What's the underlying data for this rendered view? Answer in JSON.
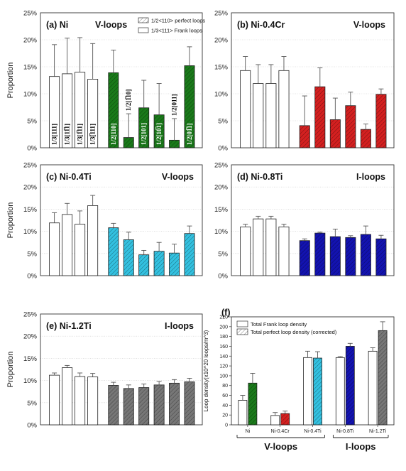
{
  "chart_data": [
    {
      "type": "bar",
      "title": "(a) Ni",
      "loop_type": "V-loops",
      "ylabel": "Proportion",
      "ylim": [
        0,
        25
      ],
      "yticks": [
        "0%",
        "5%",
        "10%",
        "15%",
        "20%",
        "25%"
      ],
      "legend": [
        "1/2<110> perfect loops",
        "1/3<111> Frank loops"
      ],
      "series": [
        {
          "name": "1/3<111> Frank loops",
          "color": "#ffffff",
          "hatch": false,
          "values": [
            13.2,
            13.7,
            14.0,
            12.7
          ],
          "errors": [
            5.9,
            6.6,
            6.4,
            6.6
          ],
          "labels": [
            "1/3[111]",
            "1/3[11̅1]",
            "1/3[1̅11]",
            "1/3[̅111]"
          ]
        },
        {
          "name": "1/2<110> perfect loops",
          "color": "#1a7a1a",
          "hatch": true,
          "values": [
            13.9,
            1.9,
            7.4,
            6.1,
            1.4,
            15.2
          ],
          "errors": [
            4.2,
            4.4,
            5.1,
            5.8,
            4.0,
            3.5
          ],
          "labels": [
            "1/2[110]",
            "1/2[1̅10]",
            "1/2[101]",
            "1/2[10̅1]",
            "1/2[011]",
            "1/2[01̅1]"
          ]
        }
      ]
    },
    {
      "type": "bar",
      "title": "(b) Ni-0.4Cr",
      "loop_type": "V-loops",
      "ylabel": "",
      "ylim": [
        0,
        25
      ],
      "yticks": [
        "0%",
        "5%",
        "10%",
        "15%",
        "20%",
        "25%"
      ],
      "series": [
        {
          "color": "#ffffff",
          "hatch": false,
          "values": [
            14.3,
            11.9,
            11.9,
            14.3
          ],
          "errors": [
            2.6,
            3.5,
            3.5,
            2.6
          ]
        },
        {
          "color": "#d42020",
          "hatch": true,
          "values": [
            4.1,
            11.3,
            5.2,
            7.8,
            3.4,
            9.9
          ],
          "errors": [
            5.5,
            3.5,
            4.0,
            2.5,
            1.0,
            1.0
          ]
        }
      ]
    },
    {
      "type": "bar",
      "title": "(c) Ni-0.4Ti",
      "loop_type": "V-loops",
      "ylabel": "Proportion",
      "ylim": [
        0,
        25
      ],
      "yticks": [
        "0%",
        "5%",
        "10%",
        "15%",
        "20%",
        "25%"
      ],
      "series": [
        {
          "color": "#ffffff",
          "hatch": false,
          "values": [
            11.9,
            13.8,
            11.6,
            15.8
          ],
          "errors": [
            2.3,
            2.5,
            3.0,
            2.3
          ]
        },
        {
          "color": "#33c1e0",
          "hatch": true,
          "values": [
            10.8,
            8.1,
            4.7,
            5.5,
            5.1,
            9.5
          ],
          "errors": [
            1.0,
            1.7,
            1.0,
            2.0,
            2.0,
            1.7
          ]
        }
      ]
    },
    {
      "type": "bar",
      "title": "(d) Ni-0.8Ti",
      "loop_type": "I-loops",
      "ylabel": "",
      "ylim": [
        0,
        25
      ],
      "yticks": [
        "0%",
        "5%",
        "10%",
        "15%",
        "20%",
        "25%"
      ],
      "series": [
        {
          "color": "#ffffff",
          "hatch": false,
          "values": [
            11.0,
            12.8,
            12.8,
            11.0
          ],
          "errors": [
            0.6,
            0.6,
            0.6,
            0.6
          ]
        },
        {
          "color": "#1313b0",
          "hatch": true,
          "values": [
            7.9,
            9.6,
            8.8,
            8.6,
            9.3,
            8.3
          ],
          "errors": [
            0.4,
            0.2,
            1.7,
            0.4,
            1.9,
            0.8
          ]
        }
      ]
    },
    {
      "type": "bar",
      "title": "(e) Ni-1.2Ti",
      "loop_type": "I-loops",
      "ylabel": "Proportion",
      "ylim": [
        0,
        25
      ],
      "yticks": [
        "0%",
        "5%",
        "10%",
        "15%",
        "20%",
        "25%"
      ],
      "series": [
        {
          "color": "#ffffff",
          "hatch": false,
          "values": [
            11.2,
            12.9,
            10.9,
            10.8
          ],
          "errors": [
            0.5,
            0.5,
            0.8,
            0.8
          ]
        },
        {
          "color": "#777777",
          "hatch": true,
          "values": [
            8.9,
            8.2,
            8.4,
            9.0,
            9.4,
            9.7
          ],
          "errors": [
            0.7,
            0.8,
            0.8,
            0.8,
            0.8,
            0.8
          ]
        }
      ]
    },
    {
      "type": "bar",
      "title": "(f)",
      "ylabel": "Loop density(x10^20 loops/m^3)",
      "ylim": [
        0,
        220
      ],
      "yticks": [
        "0",
        "20",
        "40",
        "60",
        "80",
        "100",
        "120",
        "140",
        "160",
        "180",
        "200",
        "220"
      ],
      "legend": [
        "Total Frank loop density",
        "Total perfect loop density (corrected)"
      ],
      "categories": [
        "Ni",
        "Ni-0.4Cr",
        "Ni-0.4Ti",
        "Ni-0.8Ti",
        "Ni-1.2Ti"
      ],
      "group_labels": [
        "V-loops",
        "I-loops"
      ],
      "series": [
        {
          "name": "Total Frank loop density",
          "color": "#ffffff",
          "hatch": false,
          "values": [
            50,
            19,
            137,
            137,
            150
          ],
          "errors": [
            10,
            6,
            13,
            2,
            7
          ]
        },
        {
          "name": "Total perfect loop density (corrected)",
          "hatch": true,
          "colors": [
            "#1a7a1a",
            "#d42020",
            "#33c1e0",
            "#1313b0",
            "#777777"
          ],
          "values": [
            85,
            23,
            136,
            160,
            192
          ],
          "errors": [
            20,
            5,
            13,
            6,
            18
          ]
        }
      ]
    }
  ]
}
